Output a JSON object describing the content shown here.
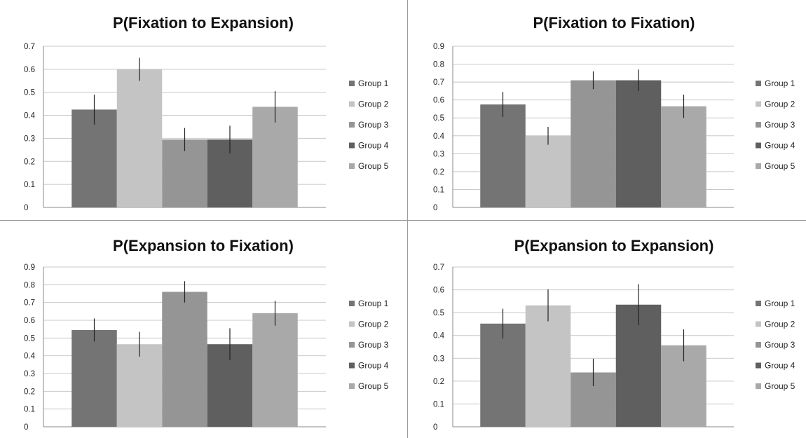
{
  "chart_data": [
    {
      "type": "bar",
      "title": "P(Fixation to Expansion)",
      "categories": [
        "Group 1",
        "Group 2",
        "Group 3",
        "Group 4",
        "Group 5"
      ],
      "values": [
        0.425,
        0.6,
        0.295,
        0.295,
        0.437
      ],
      "error": [
        0.065,
        0.05,
        0.05,
        0.06,
        0.068
      ],
      "ylim": [
        0,
        0.7
      ],
      "yticks": [
        "0",
        "0.1",
        "0.2",
        "0.3",
        "0.4",
        "0.5",
        "0.6",
        "0.7"
      ],
      "grid": true,
      "legend": "right",
      "xlabel": "",
      "ylabel": ""
    },
    {
      "type": "bar",
      "title": "P(Fixation to Fixation)",
      "categories": [
        "Group 1",
        "Group 2",
        "Group 3",
        "Group 4",
        "Group 5"
      ],
      "values": [
        0.575,
        0.4,
        0.71,
        0.71,
        0.565
      ],
      "error": [
        0.07,
        0.05,
        0.05,
        0.06,
        0.065
      ],
      "ylim": [
        0,
        0.9
      ],
      "yticks": [
        "0",
        "0.1",
        "0.2",
        "0.3",
        "0.4",
        "0.5",
        "0.6",
        "0.7",
        "0.8",
        "0.9"
      ],
      "grid": true,
      "legend": "right",
      "xlabel": "",
      "ylabel": ""
    },
    {
      "type": "bar",
      "title": "P(Expansion to Fixation)",
      "categories": [
        "Group 1",
        "Group 2",
        "Group 3",
        "Group 4",
        "Group 5"
      ],
      "values": [
        0.545,
        0.465,
        0.76,
        0.465,
        0.64
      ],
      "error": [
        0.065,
        0.07,
        0.06,
        0.09,
        0.07
      ],
      "ylim": [
        0,
        0.9
      ],
      "yticks": [
        "0",
        "0.1",
        "0.2",
        "0.3",
        "0.4",
        "0.5",
        "0.6",
        "0.7",
        "0.8",
        "0.9"
      ],
      "grid": true,
      "legend": "right",
      "xlabel": "",
      "ylabel": ""
    },
    {
      "type": "bar",
      "title": "P(Expansion to Expansion)",
      "categories": [
        "Group 1",
        "Group 2",
        "Group 3",
        "Group 4",
        "Group 5"
      ],
      "values": [
        0.452,
        0.532,
        0.238,
        0.535,
        0.357
      ],
      "error": [
        0.065,
        0.07,
        0.06,
        0.09,
        0.07
      ],
      "ylim": [
        0,
        0.7
      ],
      "yticks": [
        "0",
        "0.1",
        "0.2",
        "0.3",
        "0.4",
        "0.5",
        "0.6",
        "0.7"
      ],
      "grid": true,
      "legend": "right",
      "xlabel": "",
      "ylabel": ""
    }
  ],
  "colors": {
    "Group 1": "#747474",
    "Group 2": "#c4c4c4",
    "Group 3": "#959595",
    "Group 4": "#5f5f5f",
    "Group 5": "#a9a9a9"
  },
  "gridline_color": "#c8c8c8",
  "axis_color": "#8a8a8a",
  "errorbar_color": "#222222"
}
